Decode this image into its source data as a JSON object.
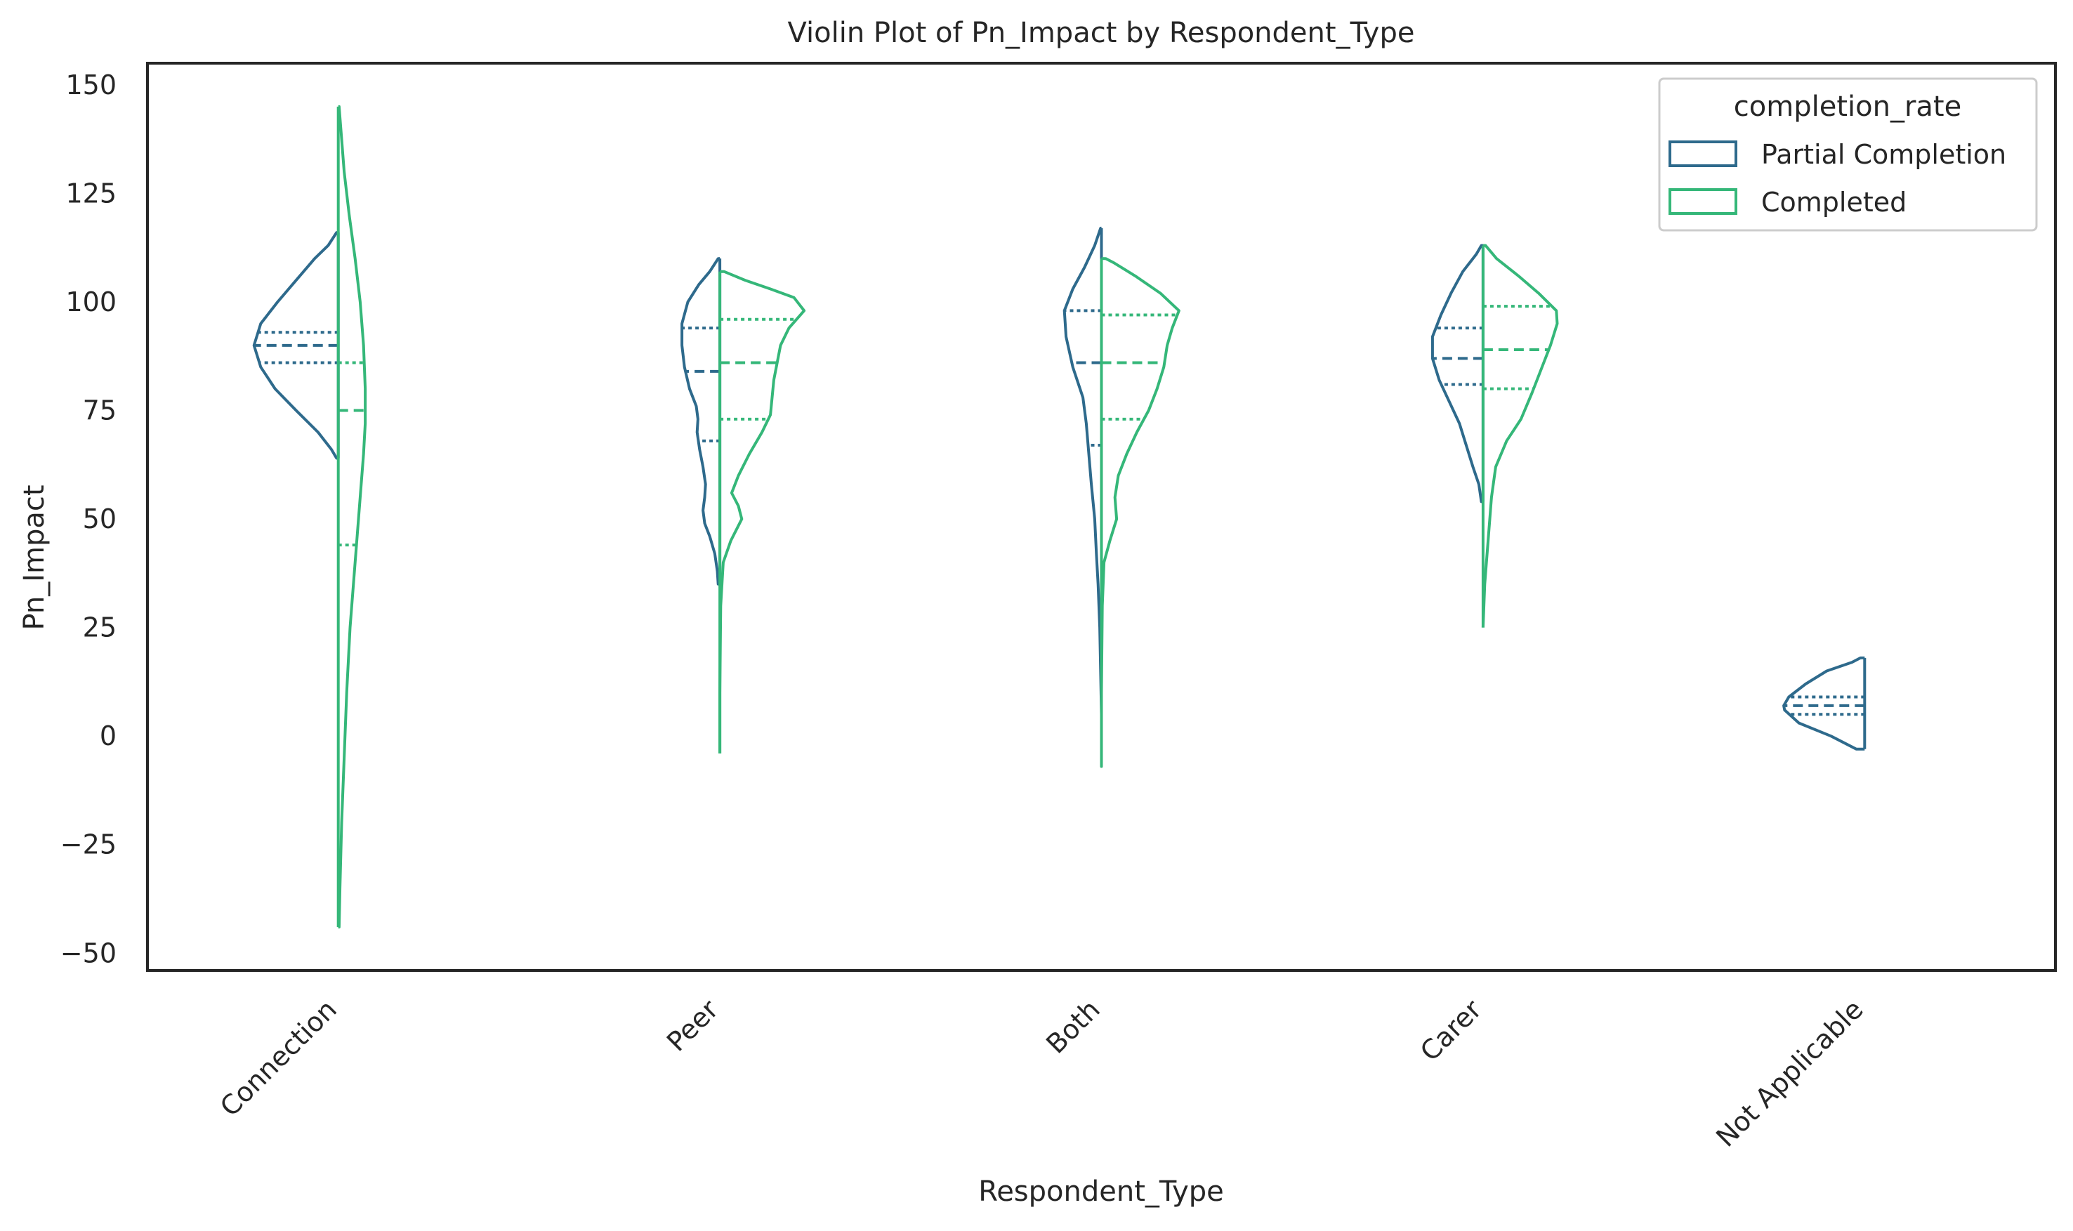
{
  "chart_data": {
    "type": "violin",
    "title": "Violin Plot of Pn_Impact by Respondent_Type",
    "xlabel": "Respondent_Type",
    "ylabel": "Pn_Impact",
    "categories": [
      "Connection",
      "Peer",
      "Both",
      "Carer",
      "Not Applicable"
    ],
    "ylim": [
      -54,
      155
    ],
    "yticks": [
      -50,
      -25,
      0,
      25,
      50,
      75,
      100,
      125,
      150
    ],
    "legend": {
      "title": "completion_rate",
      "position": "top-right"
    },
    "series": [
      {
        "name": "Partial Completion",
        "color": "#2e6a8c",
        "violins": [
          {
            "category": "Connection",
            "min": 64,
            "max": 116,
            "q1": 86,
            "median": 90,
            "q3": 93,
            "density": [
              [
                64,
                0.02
              ],
              [
                66,
                0.08
              ],
              [
                70,
                0.24
              ],
              [
                75,
                0.5
              ],
              [
                80,
                0.75
              ],
              [
                85,
                0.92
              ],
              [
                90,
                1.0
              ],
              [
                95,
                0.92
              ],
              [
                100,
                0.72
              ],
              [
                105,
                0.5
              ],
              [
                110,
                0.28
              ],
              [
                113,
                0.12
              ],
              [
                116,
                0.02
              ]
            ]
          },
          {
            "category": "Peer",
            "min": 35,
            "max": 110,
            "q1": 68,
            "median": 84,
            "q3": 94,
            "density": [
              [
                35,
                0.02
              ],
              [
                38,
                0.03
              ],
              [
                42,
                0.06
              ],
              [
                46,
                0.12
              ],
              [
                49,
                0.18
              ],
              [
                52,
                0.2
              ],
              [
                55,
                0.18
              ],
              [
                58,
                0.17
              ],
              [
                62,
                0.2
              ],
              [
                66,
                0.24
              ],
              [
                70,
                0.27
              ],
              [
                73,
                0.26
              ],
              [
                76,
                0.28
              ],
              [
                80,
                0.36
              ],
              [
                85,
                0.42
              ],
              [
                90,
                0.45
              ],
              [
                95,
                0.45
              ],
              [
                100,
                0.38
              ],
              [
                104,
                0.25
              ],
              [
                107,
                0.12
              ],
              [
                110,
                0.02
              ]
            ]
          },
          {
            "category": "Both",
            "min": 5,
            "max": 117,
            "q1": 67,
            "median": 86,
            "q3": 98,
            "density": [
              [
                5,
                0.0
              ],
              [
                15,
                0.01
              ],
              [
                25,
                0.02
              ],
              [
                35,
                0.04
              ],
              [
                42,
                0.06
              ],
              [
                50,
                0.08
              ],
              [
                58,
                0.12
              ],
              [
                65,
                0.15
              ],
              [
                72,
                0.18
              ],
              [
                78,
                0.22
              ],
              [
                85,
                0.34
              ],
              [
                92,
                0.42
              ],
              [
                98,
                0.44
              ],
              [
                103,
                0.34
              ],
              [
                108,
                0.2
              ],
              [
                113,
                0.08
              ],
              [
                117,
                0.01
              ]
            ]
          },
          {
            "category": "Carer",
            "min": 54,
            "max": 113,
            "q1": 81,
            "median": 87,
            "q3": 94,
            "density": [
              [
                54,
                0.02
              ],
              [
                58,
                0.05
              ],
              [
                62,
                0.12
              ],
              [
                67,
                0.2
              ],
              [
                72,
                0.28
              ],
              [
                77,
                0.4
              ],
              [
                82,
                0.52
              ],
              [
                87,
                0.6
              ],
              [
                92,
                0.6
              ],
              [
                97,
                0.5
              ],
              [
                102,
                0.38
              ],
              [
                107,
                0.24
              ],
              [
                111,
                0.08
              ],
              [
                113,
                0.02
              ]
            ]
          },
          {
            "category": "Not Applicable",
            "min": -3,
            "max": 18,
            "q1": 5,
            "median": 7,
            "q3": 9,
            "density": [
              [
                -3,
                0.1
              ],
              [
                0,
                0.4
              ],
              [
                3,
                0.78
              ],
              [
                6,
                0.95
              ],
              [
                7,
                0.96
              ],
              [
                9,
                0.9
              ],
              [
                12,
                0.7
              ],
              [
                15,
                0.45
              ],
              [
                17,
                0.15
              ],
              [
                18,
                0.05
              ]
            ]
          }
        ]
      },
      {
        "name": "Completed",
        "color": "#35b779",
        "violins": [
          {
            "category": "Connection",
            "min": -44,
            "max": 145,
            "q1": 44,
            "median": 75,
            "q3": 86,
            "density": [
              [
                -44,
                0.01
              ],
              [
                -35,
                0.02
              ],
              [
                -20,
                0.04
              ],
              [
                -5,
                0.07
              ],
              [
                10,
                0.1
              ],
              [
                25,
                0.14
              ],
              [
                40,
                0.2
              ],
              [
                55,
                0.26
              ],
              [
                65,
                0.3
              ],
              [
                72,
                0.32
              ],
              [
                80,
                0.32
              ],
              [
                90,
                0.3
              ],
              [
                100,
                0.26
              ],
              [
                110,
                0.2
              ],
              [
                120,
                0.13
              ],
              [
                130,
                0.07
              ],
              [
                140,
                0.03
              ],
              [
                145,
                0.01
              ]
            ]
          },
          {
            "category": "Peer",
            "min": -4,
            "max": 107,
            "q1": 73,
            "median": 86,
            "q3": 96,
            "density": [
              [
                -4,
                0.0
              ],
              [
                10,
                0.0
              ],
              [
                30,
                0.01
              ],
              [
                40,
                0.04
              ],
              [
                45,
                0.13
              ],
              [
                50,
                0.26
              ],
              [
                53,
                0.22
              ],
              [
                56,
                0.14
              ],
              [
                60,
                0.22
              ],
              [
                65,
                0.35
              ],
              [
                70,
                0.5
              ],
              [
                74,
                0.6
              ],
              [
                78,
                0.62
              ],
              [
                82,
                0.64
              ],
              [
                86,
                0.68
              ],
              [
                90,
                0.72
              ],
              [
                94,
                0.82
              ],
              [
                98,
                1.0
              ],
              [
                101,
                0.88
              ],
              [
                103,
                0.6
              ],
              [
                105,
                0.3
              ],
              [
                107,
                0.05
              ]
            ]
          },
          {
            "category": "Both",
            "min": -7,
            "max": 110,
            "q1": 73,
            "median": 86,
            "q3": 97,
            "density": [
              [
                -7,
                0.0
              ],
              [
                10,
                0.0
              ],
              [
                30,
                0.01
              ],
              [
                40,
                0.03
              ],
              [
                45,
                0.1
              ],
              [
                50,
                0.18
              ],
              [
                55,
                0.16
              ],
              [
                60,
                0.2
              ],
              [
                65,
                0.3
              ],
              [
                70,
                0.42
              ],
              [
                75,
                0.56
              ],
              [
                80,
                0.66
              ],
              [
                85,
                0.74
              ],
              [
                90,
                0.78
              ],
              [
                94,
                0.84
              ],
              [
                98,
                0.92
              ],
              [
                102,
                0.7
              ],
              [
                106,
                0.4
              ],
              [
                109,
                0.15
              ],
              [
                110,
                0.05
              ]
            ]
          },
          {
            "category": "Carer",
            "min": 25,
            "max": 113,
            "q1": 80,
            "median": 89,
            "q3": 99,
            "density": [
              [
                25,
                0.0
              ],
              [
                35,
                0.02
              ],
              [
                45,
                0.06
              ],
              [
                55,
                0.1
              ],
              [
                62,
                0.15
              ],
              [
                68,
                0.28
              ],
              [
                73,
                0.45
              ],
              [
                79,
                0.58
              ],
              [
                85,
                0.7
              ],
              [
                90,
                0.8
              ],
              [
                95,
                0.88
              ],
              [
                98,
                0.87
              ],
              [
                102,
                0.66
              ],
              [
                106,
                0.42
              ],
              [
                110,
                0.16
              ],
              [
                113,
                0.03
              ]
            ]
          }
        ]
      }
    ]
  }
}
